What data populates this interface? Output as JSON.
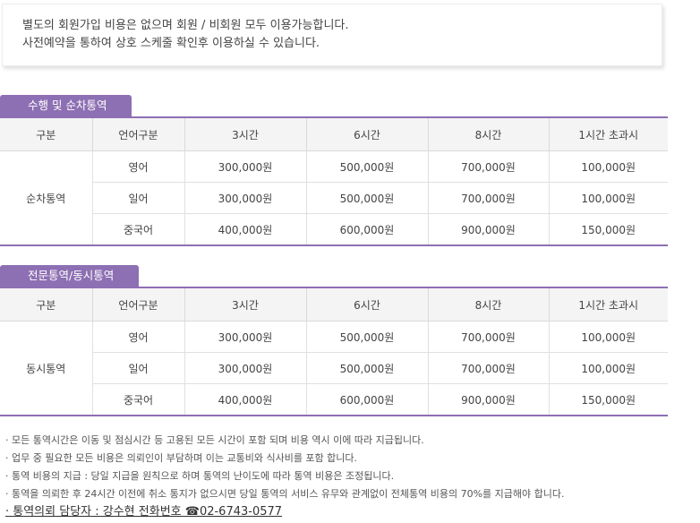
{
  "notice": {
    "line1": "별도의 회원가입 비용은 없으며 회원 / 비회원 모두 이용가능합니다.",
    "line2": "사전예약을 통하여 상호 스케줄 확인후 이용하실 수 있습니다."
  },
  "sections": [
    {
      "tab": "수행 및 순차통역",
      "headers": [
        "구분",
        "언어구분",
        "3시간",
        "6시간",
        "8시간",
        "1시간 초과시"
      ],
      "group": "순차통역",
      "rows": [
        [
          "영어",
          "300,000원",
          "500,000원",
          "700,000원",
          "100,000원"
        ],
        [
          "일어",
          "300,000원",
          "500,000원",
          "700,000원",
          "100,000원"
        ],
        [
          "중국어",
          "400,000원",
          "600,000원",
          "900,000원",
          "150,000원"
        ]
      ]
    },
    {
      "tab": "전문통역/동시통역",
      "headers": [
        "구분",
        "언어구분",
        "3시간",
        "6시간",
        "8시간",
        "1시간 초과시"
      ],
      "group": "동시통역",
      "rows": [
        [
          "영어",
          "300,000원",
          "500,000원",
          "700,000원",
          "100,000원"
        ],
        [
          "일어",
          "300,000원",
          "500,000원",
          "700,000원",
          "100,000원"
        ],
        [
          "중국어",
          "400,000원",
          "600,000원",
          "900,000원",
          "150,000원"
        ]
      ]
    }
  ],
  "notes": [
    "· 모든 통역시간은 이동 및 점심시간 등 고용된 모든 시간이 포함 되며 비용 역시 이에 따라 지급됩니다.",
    "· 업무 중 필요한 모든 비용은 의뢰인이 부담하며 이는 교통비와 식사비를 포함 합니다.",
    "· 통역 비용의 지급 : 당일 지급을 원칙으로 하며 통역의 난이도에 따라 통역 비용은 조정됩니다.",
    "· 통역을 의뢰한 후 24시간 이전에 취소 통지가 없으시면 당일 통역의 서비스 유무와 관계없이 전체통역 비용의 70%를 지급해야 합니다."
  ],
  "contact": "· 통역의뢰 담당자 : 강수현 전화번호 ☎02-6743-0577"
}
